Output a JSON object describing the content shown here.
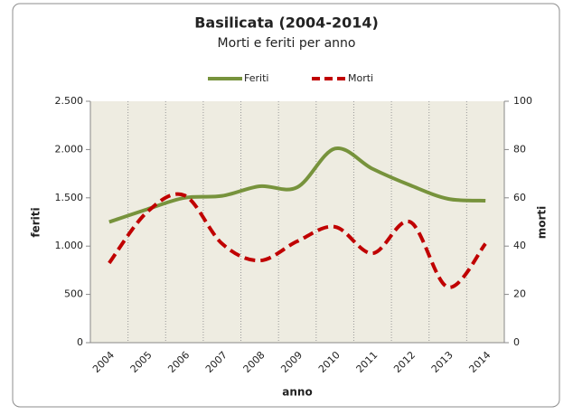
{
  "chart_data": {
    "type": "line",
    "title": "Basilicata (2004-2014)",
    "subtitle": "Morti e feriti per anno",
    "categories": [
      "2004",
      "2005",
      "2006",
      "2007",
      "2008",
      "2009",
      "2010",
      "2011",
      "2012",
      "2013",
      "2014"
    ],
    "series": [
      {
        "name": "Feriti",
        "color": "#77933c",
        "values": [
          1250,
          1380,
          1500,
          1520,
          1620,
          1610,
          2010,
          1800,
          1630,
          1490,
          1470
        ]
      },
      {
        "name": "Morti",
        "color": "#c00000",
        "axis": "y2",
        "dashed": true,
        "values": [
          33,
          54,
          61,
          41,
          34,
          42,
          48,
          37,
          50,
          23,
          41
        ]
      }
    ],
    "ylabel": "feriti",
    "y2label": "morti",
    "xlabel": "anno",
    "ylim": [
      0,
      2500
    ],
    "yticks": [
      0,
      {
        "value": 500,
        "label": "500"
      },
      {
        "value": 1000,
        "label": "1.000"
      },
      {
        "value": 1500,
        "label": "1.500"
      },
      {
        "value": 2000,
        "label": "2.000"
      },
      {
        "value": 2500,
        "label": "2.500"
      }
    ],
    "y2lim": [
      0,
      100
    ],
    "y2ticks": [
      0,
      20,
      40,
      60,
      80,
      100
    ],
    "legend": "top"
  }
}
